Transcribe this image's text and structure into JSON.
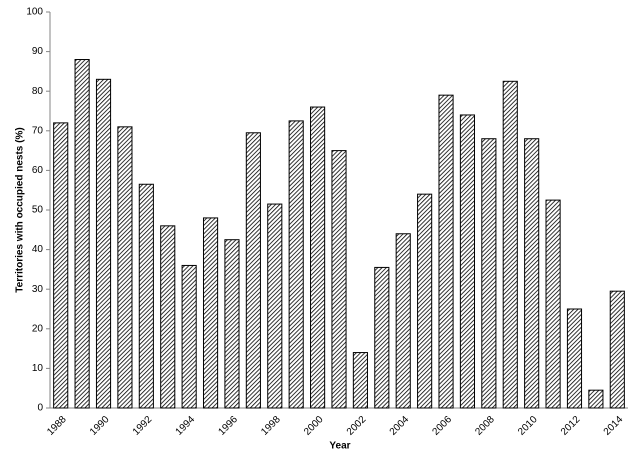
{
  "chart_data": {
    "type": "bar",
    "x_label": "Year",
    "y_label": "Territories with occupied nests (%)",
    "categories": [
      "1988",
      null,
      "1990",
      null,
      "1992",
      null,
      "1994",
      null,
      "1996",
      null,
      "1998",
      null,
      "2000",
      null,
      "2002",
      null,
      "2004",
      null,
      "2006",
      null,
      "2008",
      null,
      "2010",
      null,
      "2012",
      null,
      "2014"
    ],
    "values": [
      72,
      88,
      83,
      71,
      56.5,
      46,
      36,
      48,
      42.5,
      69.5,
      51.5,
      72.5,
      76,
      65,
      14,
      35.5,
      44,
      54,
      79,
      74,
      68,
      82.5,
      68,
      52.5,
      25,
      4.5,
      29.5
    ],
    "color": "#000000",
    "ylim": [
      0,
      100
    ],
    "yticks": [
      0,
      10,
      20,
      30,
      40,
      50,
      60,
      70,
      80,
      90,
      100
    ],
    "grid": false
  }
}
